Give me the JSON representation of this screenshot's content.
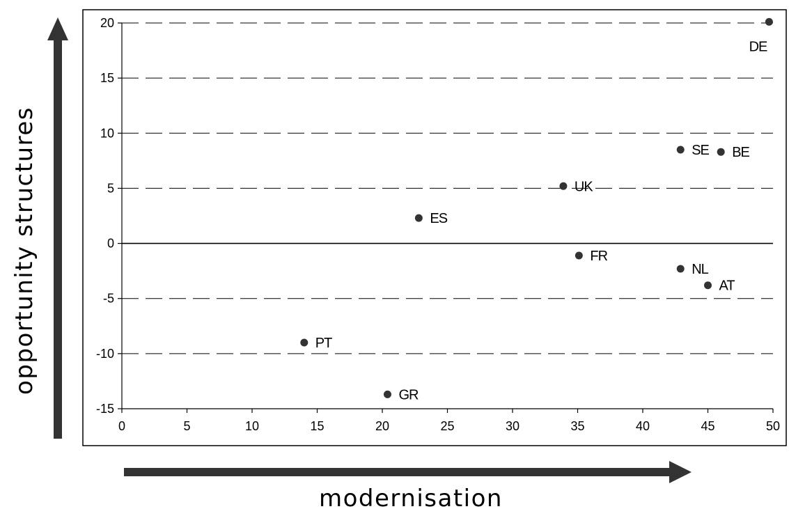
{
  "chart_data": {
    "type": "scatter",
    "xlabel": "modernisation",
    "ylabel": "opportunity structures",
    "xlim": [
      0,
      50
    ],
    "ylim": [
      -15,
      20
    ],
    "x_ticks": [
      0,
      5,
      10,
      15,
      20,
      25,
      30,
      35,
      40,
      45,
      50
    ],
    "y_ticks": [
      -15,
      -10,
      -5,
      0,
      5,
      10,
      15,
      20
    ],
    "grid": "horizontal-dashed",
    "point_color": "#333333",
    "points": [
      {
        "label": "DE",
        "x": 49.7,
        "y": 20.1
      },
      {
        "label": "SE",
        "x": 42.9,
        "y": 8.5
      },
      {
        "label": "BE",
        "x": 46.0,
        "y": 8.3
      },
      {
        "label": "UK",
        "x": 33.9,
        "y": 5.2
      },
      {
        "label": "ES",
        "x": 22.8,
        "y": 2.3
      },
      {
        "label": "FR",
        "x": 35.1,
        "y": -1.1
      },
      {
        "label": "NL",
        "x": 42.9,
        "y": -2.3
      },
      {
        "label": "AT",
        "x": 45.0,
        "y": -3.8
      },
      {
        "label": "PT",
        "x": 14.0,
        "y": -9.0
      },
      {
        "label": "GR",
        "x": 20.4,
        "y": -13.7
      }
    ]
  }
}
